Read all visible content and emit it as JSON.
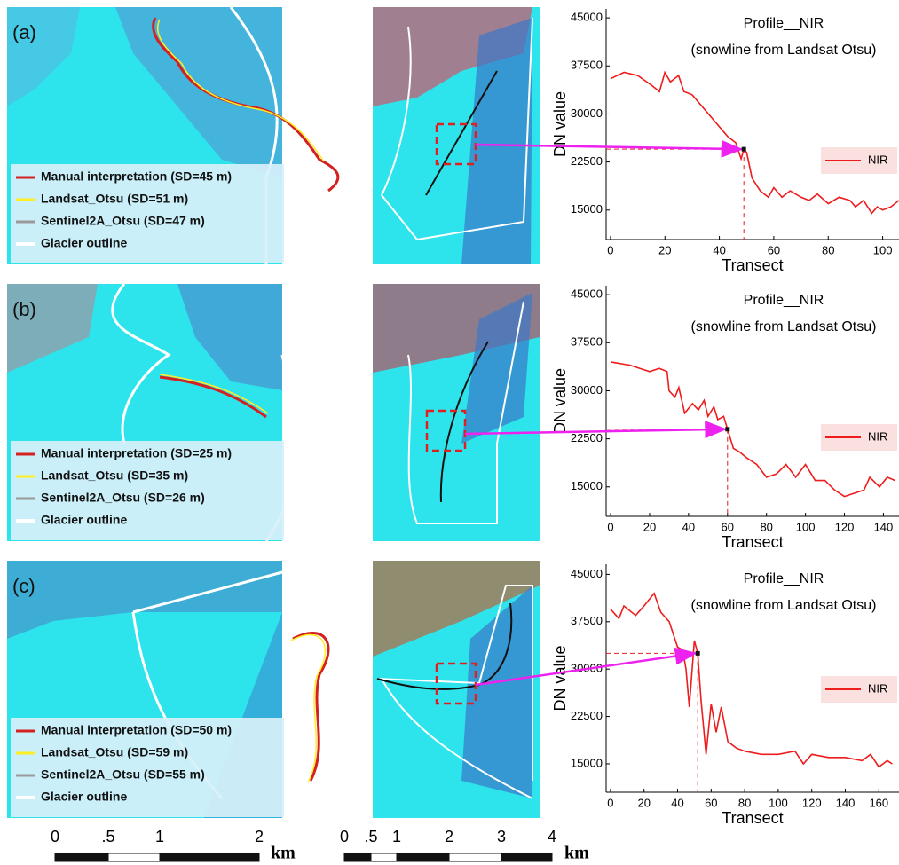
{
  "panels": [
    {
      "label": "(a)",
      "legend": [
        "Manual interpretation (SD=45 m)",
        "Landsat_Otsu (SD=51 m)",
        "Sentinel2A_Otsu (SD=47 m)",
        "Glacier outline"
      ]
    },
    {
      "label": "(b)",
      "legend": [
        "Manual interpretation (SD=25 m)",
        "Landsat_Otsu (SD=35 m)",
        "Sentinel2A_Otsu (SD=26 m)",
        "Glacier outline"
      ]
    },
    {
      "label": "(c)",
      "legend": [
        "Manual interpretation (SD=50 m)",
        "Landsat_Otsu (SD=59 m)",
        "Sentinel2A_Otsu (SD=55 m)",
        "Glacier outline"
      ]
    }
  ],
  "scale_bars": [
    {
      "labels": [
        "0",
        ".5",
        "1",
        "2"
      ],
      "unit": "km"
    },
    {
      "labels": [
        "0",
        ".5",
        "1",
        "2",
        "3",
        "4"
      ],
      "unit": "km"
    }
  ],
  "chart_data": [
    {
      "type": "line",
      "title": "Profile__NIR",
      "subtitle": "(snowline from Landsat Otsu)",
      "y_label": "DN value",
      "x_label": "Transect",
      "x": [
        0,
        5,
        10,
        15,
        18,
        20,
        22,
        25,
        27,
        30,
        33,
        36,
        40,
        43,
        46,
        48,
        49,
        50,
        52,
        55,
        58,
        60,
        63,
        66,
        70,
        73,
        76,
        80,
        84,
        88,
        90,
        93,
        96,
        98,
        100,
        103,
        106
      ],
      "series": [
        {
          "name": "NIR",
          "color": "#ee1c1c",
          "values": [
            35500,
            36500,
            36000,
            34500,
            33500,
            36500,
            35000,
            36000,
            33500,
            33000,
            31500,
            30000,
            28000,
            26500,
            25500,
            23000,
            24500,
            24000,
            20000,
            18000,
            17000,
            18500,
            17000,
            18000,
            17000,
            16500,
            17500,
            16000,
            17000,
            16500,
            15500,
            16500,
            14500,
            15500,
            15000,
            15500,
            16500
          ]
        }
      ],
      "snowline": {
        "x": 49,
        "y": 24500
      },
      "xlim": [
        -1.6,
        106
      ],
      "ylim": [
        10400,
        46400
      ],
      "xticks": [
        0,
        20,
        40,
        60,
        80,
        100
      ],
      "yticks": [
        45000,
        37500,
        30000,
        22500,
        15000
      ]
    },
    {
      "type": "line",
      "title": "Profile__NIR",
      "subtitle": "(snowline from Landsat Otsu)",
      "y_label": "DN value",
      "x_label": "Transect",
      "x": [
        0,
        10,
        15,
        20,
        25,
        29,
        30,
        33,
        35,
        38,
        42,
        45,
        48,
        50,
        53,
        55,
        58,
        60,
        63,
        66,
        70,
        75,
        80,
        85,
        90,
        95,
        100,
        105,
        110,
        115,
        120,
        125,
        130,
        133,
        138,
        142,
        146
      ],
      "series": [
        {
          "name": "NIR",
          "color": "#ee1c1c",
          "values": [
            34500,
            34000,
            33500,
            33000,
            33500,
            33000,
            30000,
            29000,
            30500,
            26500,
            28000,
            27000,
            28500,
            26000,
            27500,
            25500,
            26000,
            24000,
            21000,
            20500,
            19500,
            18500,
            16500,
            17000,
            18500,
            16500,
            18500,
            16000,
            16000,
            14500,
            13500,
            14000,
            14500,
            16500,
            15000,
            16500,
            16000
          ]
        }
      ],
      "snowline": {
        "x": 60,
        "y": 24000
      },
      "xlim": [
        -2.3,
        148
      ],
      "ylim": [
        10400,
        46400
      ],
      "xticks": [
        0,
        20,
        40,
        60,
        80,
        100,
        120,
        140
      ],
      "yticks": [
        45000,
        37500,
        30000,
        22500,
        15000
      ]
    },
    {
      "type": "line",
      "title": "Profile__NIR",
      "subtitle": "(snowline from Landsat Otsu)",
      "y_label": "DN value",
      "x_label": "Transect",
      "x": [
        0,
        5,
        8,
        15,
        20,
        26,
        30,
        35,
        40,
        43,
        45,
        47,
        50,
        52,
        54,
        57,
        60,
        63,
        66,
        70,
        75,
        80,
        90,
        100,
        110,
        115,
        120,
        130,
        140,
        150,
        155,
        160,
        165,
        168
      ],
      "series": [
        {
          "name": "NIR",
          "color": "#ee1c1c",
          "values": [
            39500,
            38000,
            40000,
            38500,
            40000,
            42000,
            39000,
            37500,
            33500,
            33000,
            30000,
            24000,
            34500,
            32500,
            25000,
            16500,
            24500,
            20000,
            24000,
            18500,
            17500,
            17000,
            16500,
            16500,
            17000,
            15000,
            16500,
            16000,
            16000,
            15500,
            16500,
            14500,
            15500,
            15000
          ]
        }
      ],
      "snowline": {
        "x": 52,
        "y": 32500
      },
      "xlim": [
        -2.6,
        172
      ],
      "ylim": [
        10500,
        46600
      ],
      "xticks": [
        0,
        20,
        40,
        60,
        80,
        100,
        120,
        140,
        160
      ],
      "yticks": [
        45000,
        37500,
        30000,
        22500,
        15000
      ]
    }
  ]
}
